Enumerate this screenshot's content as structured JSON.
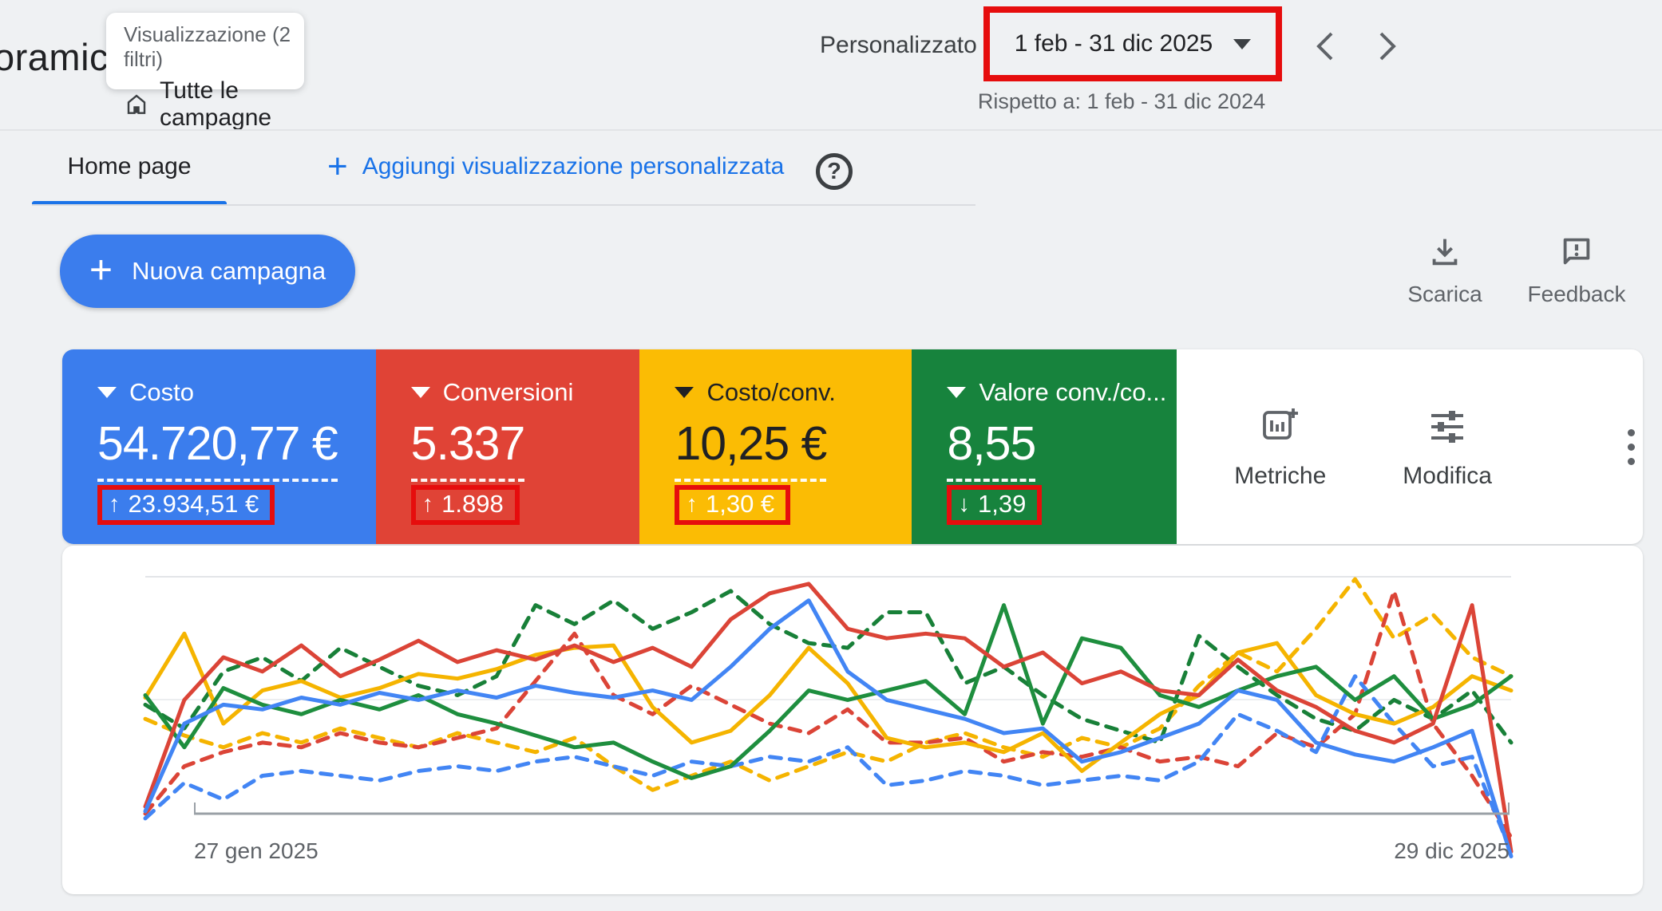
{
  "page": {
    "title_partial": "oramica",
    "background": "#eff1f3",
    "annotation_color": "#e60d0d"
  },
  "header": {
    "view_chip": {
      "line1": "Visualizzazione (2 filtri)",
      "line2": "Tutte le campagne"
    },
    "date_range": {
      "mode_label": "Personalizzato",
      "value": "1 feb - 31 dic 2025",
      "compare_label": "Rispetto a: 1 feb - 31 dic 2024",
      "annotated": true
    }
  },
  "tabs": {
    "active_tab": "Home page",
    "add_view_plus": "+",
    "add_view_label": "Aggiungi visualizzazione personalizzata",
    "help_glyph": "?"
  },
  "actions": {
    "new_campaign_plus": "+",
    "new_campaign_label": "Nuova campagna",
    "download_label": "Scarica",
    "feedback_label": "Feedback",
    "metrics_label": "Metriche",
    "edit_label": "Modifica"
  },
  "scorecards": [
    {
      "label": "Costo",
      "value": "54.720,77 €",
      "delta": "23.934,51 €",
      "delta_direction": "up",
      "color": "#3b7ded",
      "text_color": "#ffffff",
      "annotated": true
    },
    {
      "label": "Conversioni",
      "value": "5.337",
      "delta": "1.898",
      "delta_direction": "up",
      "color": "#e04336",
      "text_color": "#ffffff",
      "annotated": true
    },
    {
      "label": "Costo/conv.",
      "value": "10,25 €",
      "delta": "1,30 €",
      "delta_direction": "up",
      "color": "#fbbc04",
      "text_color": "#202124",
      "annotated": true
    },
    {
      "label": "Valore conv./co...",
      "value": "8,55",
      "delta": "1,39",
      "delta_direction": "down",
      "color": "#17833d",
      "text_color": "#ffffff",
      "annotated": true
    }
  ],
  "chart_data": {
    "type": "line",
    "x_start_label": "27 gen 2025",
    "x_end_label": "29 dic 2025",
    "x_points": 36,
    "y_axis": "unlabeled — values are relative units 0-100 estimated from pixel heights (top gridline = 100, baseline = 0)",
    "grid": "two horizontal gridlines, bottom axis only",
    "legend_position": "none (colors map to scorecards above)",
    "series": [
      {
        "name": "Costo/conv. 2024",
        "color": "#f5b400",
        "style": "dashed",
        "values": [
          40,
          33,
          28,
          34,
          30,
          36,
          32,
          28,
          34,
          30,
          26,
          32,
          20,
          10,
          16,
          22,
          14,
          20,
          26,
          22,
          30,
          34,
          28,
          24,
          32,
          28,
          36,
          54,
          68,
          60,
          78,
          99,
          74,
          84,
          66,
          58
        ]
      },
      {
        "name": "Valore conv./costo 2024",
        "color": "#188038",
        "style": "dashed",
        "values": [
          46,
          36,
          60,
          66,
          56,
          70,
          62,
          54,
          50,
          58,
          88,
          80,
          90,
          78,
          85,
          94,
          80,
          72,
          70,
          85,
          85,
          55,
          62,
          50,
          40,
          35,
          30,
          75,
          62,
          50,
          40,
          35,
          48,
          40,
          52,
          30
        ]
      },
      {
        "name": "Conversioni 2024",
        "color": "#db4437",
        "style": "dashed",
        "values": [
          0,
          20,
          26,
          30,
          28,
          34,
          30,
          28,
          32,
          36,
          56,
          76,
          50,
          42,
          54,
          46,
          38,
          34,
          44,
          30,
          30,
          32,
          22,
          26,
          24,
          28,
          22,
          24,
          20,
          34,
          28,
          42,
          94,
          38,
          16,
          -10
        ]
      },
      {
        "name": "Costo 2024",
        "color": "#4285f4",
        "style": "dashed",
        "values": [
          -2,
          13,
          6,
          16,
          18,
          16,
          14,
          18,
          20,
          18,
          22,
          24,
          20,
          16,
          22,
          20,
          24,
          22,
          28,
          12,
          14,
          18,
          16,
          12,
          14,
          16,
          14,
          22,
          42,
          35,
          26,
          58,
          38,
          20,
          24,
          -16
        ]
      },
      {
        "name": "Costo/conv. 2025",
        "color": "#f5b400",
        "style": "solid",
        "values": [
          49,
          76,
          38,
          52,
          56,
          49,
          53,
          59,
          57,
          61,
          67,
          70,
          71,
          45,
          30,
          35,
          50,
          70,
          55,
          32,
          28,
          30,
          26,
          34,
          18,
          30,
          42,
          50,
          68,
          72,
          50,
          42,
          38,
          45,
          58,
          52
        ]
      },
      {
        "name": "Valore conv./costo 2025",
        "color": "#1e8e3e",
        "style": "solid",
        "values": [
          50,
          28,
          53,
          46,
          42,
          48,
          44,
          50,
          42,
          38,
          33,
          28,
          30,
          22,
          15,
          20,
          35,
          52,
          48,
          52,
          56,
          42,
          88,
          38,
          74,
          70,
          50,
          45,
          52,
          58,
          62,
          48,
          58,
          40,
          46,
          58
        ]
      },
      {
        "name": "Conversioni 2025",
        "color": "#db4437",
        "style": "solid",
        "values": [
          3,
          48,
          66,
          60,
          71,
          58,
          65,
          73,
          64,
          69,
          65,
          71,
          64,
          70,
          62,
          82,
          93,
          97,
          78,
          74,
          76,
          74,
          62,
          68,
          55,
          60,
          52,
          50,
          65,
          52,
          45,
          35,
          30,
          38,
          88,
          -16
        ]
      },
      {
        "name": "Costo 2025",
        "color": "#4285f4",
        "style": "solid",
        "values": [
          1,
          38,
          46,
          44,
          49,
          46,
          51,
          48,
          52,
          49,
          54,
          51,
          49,
          52,
          48,
          62,
          78,
          90,
          60,
          48,
          44,
          40,
          34,
          36,
          22,
          26,
          32,
          38,
          52,
          48,
          30,
          25,
          22,
          28,
          35,
          -18
        ]
      }
    ]
  }
}
